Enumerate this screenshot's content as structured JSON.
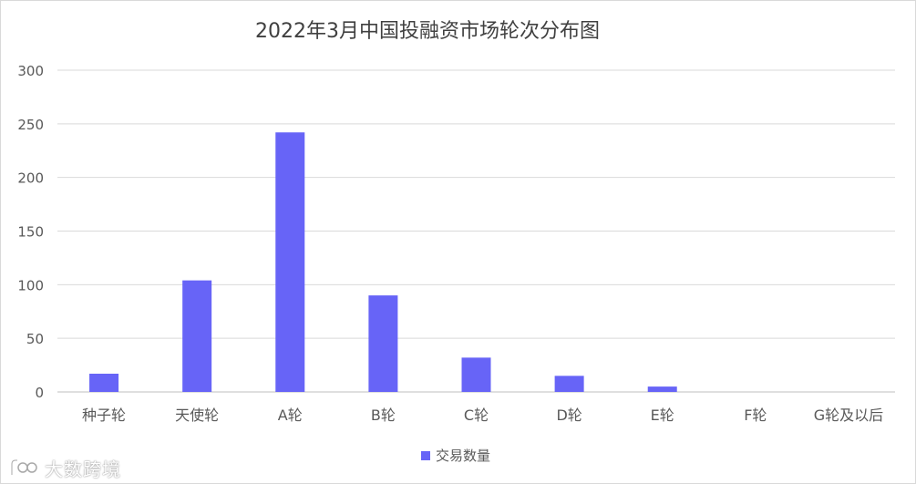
{
  "chart_data": {
    "type": "bar",
    "title": "2022年3月中国投融资市场轮次分布图",
    "categories": [
      "种子轮",
      "天使轮",
      "A轮",
      "B轮",
      "C轮",
      "D轮",
      "E轮",
      "F轮",
      "G轮及以后"
    ],
    "series": [
      {
        "name": "交易数量",
        "values": [
          17,
          104,
          242,
          90,
          32,
          15,
          5,
          0,
          0
        ]
      }
    ],
    "ylim": [
      0,
      300
    ],
    "yticks": [
      0,
      50,
      100,
      150,
      200,
      250,
      300
    ],
    "grid": true,
    "legend": "bottom-center",
    "colors": {
      "bar": "#6764F7",
      "grid": "#d9d9d9",
      "axis_text": "#595959",
      "title_text": "#404040"
    }
  },
  "watermark": {
    "text": "大数跨境"
  }
}
